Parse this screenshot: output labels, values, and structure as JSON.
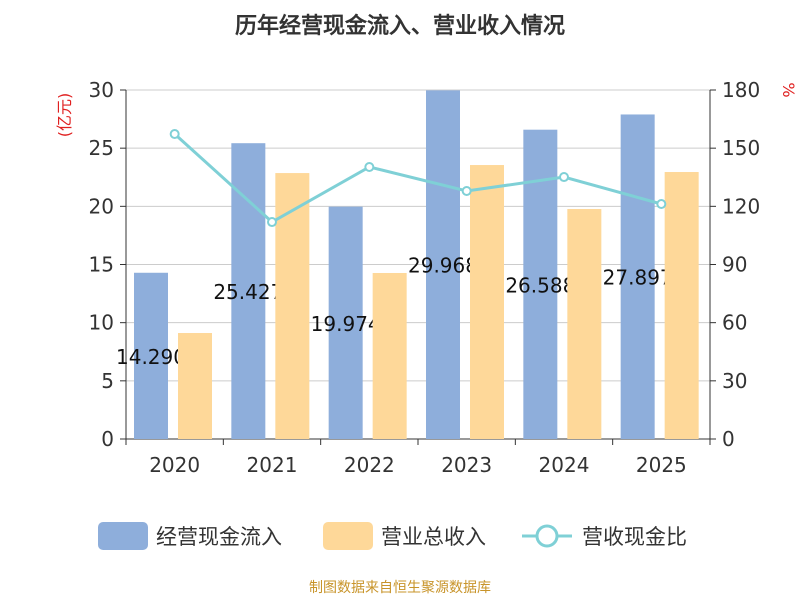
{
  "chart_data": {
    "type": "bar+line",
    "title": "历年经营现金流入、营业收入情况",
    "categories": [
      "2020",
      "2021",
      "2022",
      "2023",
      "2024",
      "2025"
    ],
    "y_left": {
      "label": "(亿元)",
      "range": [
        0,
        30
      ],
      "ticks": [
        0,
        5,
        10,
        15,
        20,
        25,
        30
      ]
    },
    "y_right": {
      "label": "%",
      "range": [
        0,
        180
      ],
      "ticks": [
        0,
        30,
        60,
        90,
        120,
        150,
        180
      ]
    },
    "grid": true,
    "legend_position": "bottom",
    "series": [
      {
        "name": "经营现金流入",
        "type": "bar",
        "axis": "left",
        "color": "#8eaedb",
        "values": [
          14.29,
          25.427,
          19.974,
          29.968,
          26.588,
          27.897
        ],
        "labels": [
          "14.290",
          "25.427",
          "19.974",
          "29.968",
          "26.588",
          "27.897"
        ]
      },
      {
        "name": "营业总收入",
        "type": "bar",
        "axis": "left",
        "color": "#fed899",
        "values": [
          9.11,
          22.86,
          14.27,
          23.55,
          19.77,
          22.95
        ]
      },
      {
        "name": "营收现金比",
        "type": "line",
        "axis": "right",
        "color": "#7fd0d6",
        "values": [
          157.3,
          111.9,
          140.3,
          127.9,
          135.1,
          121.2
        ]
      }
    ]
  },
  "source": "制图数据来自恒生聚源数据库"
}
